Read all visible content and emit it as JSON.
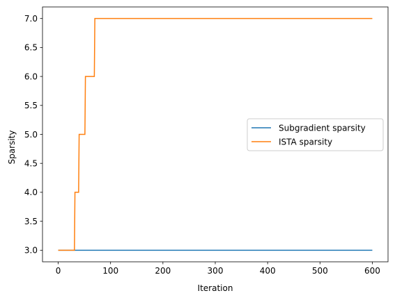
{
  "chart_data": {
    "type": "line",
    "xlabel": "Iteration",
    "ylabel": "Sparsity",
    "xlim": [
      -30,
      630
    ],
    "ylim": [
      2.8,
      7.2
    ],
    "xticks": [
      0,
      100,
      200,
      300,
      400,
      500,
      600
    ],
    "yticks": [
      3.0,
      3.5,
      4.0,
      4.5,
      5.0,
      5.5,
      6.0,
      6.5,
      7.0
    ],
    "ytick_labels": [
      "3.0",
      "3.5",
      "4.0",
      "4.5",
      "5.0",
      "5.5",
      "6.0",
      "6.5",
      "7.0"
    ],
    "grid": false,
    "legend_position": "center-right",
    "series": [
      {
        "name": "Subgradient sparsity",
        "color": "#1f77b4",
        "step": true,
        "x": [
          0,
          600
        ],
        "y": [
          3,
          3
        ]
      },
      {
        "name": "ISTA sparsity",
        "color": "#ff7f0e",
        "step": true,
        "x": [
          0,
          31,
          32,
          39,
          40,
          51,
          52,
          69,
          70,
          600
        ],
        "y": [
          3,
          3,
          4,
          4,
          5,
          5,
          6,
          6,
          7,
          7
        ]
      }
    ]
  }
}
